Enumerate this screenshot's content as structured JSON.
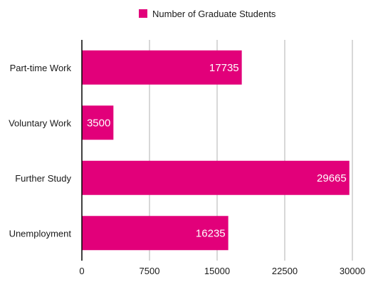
{
  "chart_data": {
    "type": "bar",
    "orientation": "horizontal",
    "categories": [
      "Part-time Work",
      "Voluntary Work",
      "Further Study",
      "Unemployment"
    ],
    "series": [
      {
        "name": "Number of Graduate Students",
        "values": [
          17735,
          3500,
          29665,
          16235
        ],
        "color": "#e2007a"
      }
    ],
    "xlim": [
      0,
      30000
    ],
    "xticks": [
      0,
      7500,
      15000,
      22500,
      30000
    ],
    "xtick_labels": [
      "0",
      "7500",
      "15000",
      "22500",
      "30000"
    ],
    "data_labels": [
      "17735",
      "3500",
      "29665",
      "16235"
    ],
    "grid": true,
    "legend": "top-center"
  }
}
